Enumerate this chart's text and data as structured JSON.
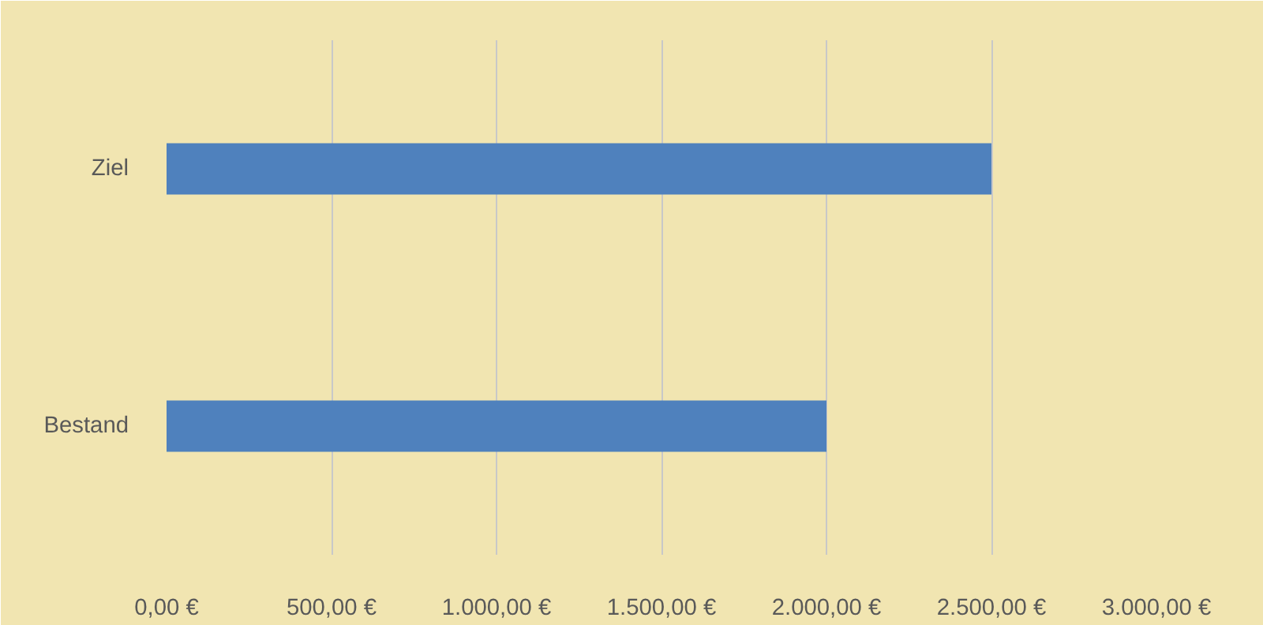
{
  "chart_data": {
    "type": "bar",
    "orientation": "horizontal",
    "categories": [
      "Ziel",
      "Bestand"
    ],
    "values": [
      2500,
      2000
    ],
    "color": "#4f81bd",
    "xlim": [
      0,
      3000
    ],
    "xticks": [
      {
        "value": 0,
        "label": "0,00 €"
      },
      {
        "value": 500,
        "label": "500,00 €"
      },
      {
        "value": 1000,
        "label": "1.000,00 €"
      },
      {
        "value": 1500,
        "label": "1.500,00 €"
      },
      {
        "value": 2000,
        "label": "2.000,00 €"
      },
      {
        "value": 2500,
        "label": "2.500,00 €"
      },
      {
        "value": 3000,
        "label": "3.000,00 €"
      }
    ],
    "grid": "x"
  }
}
